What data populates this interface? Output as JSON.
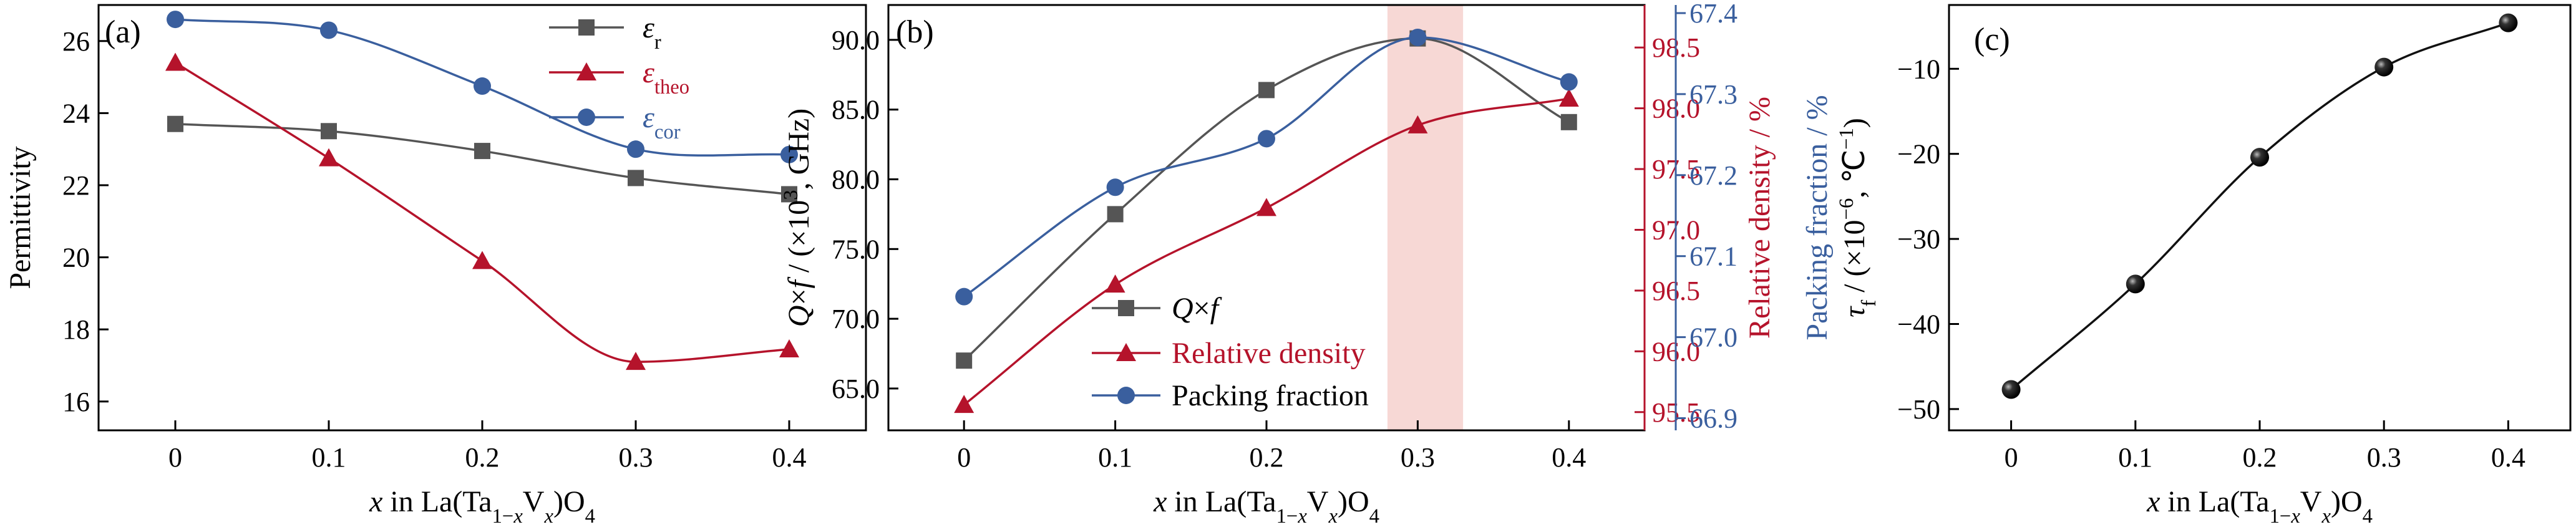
{
  "figure": {
    "panels": [
      {
        "panel_label": "(a)",
        "xlabel": "x in La(Ta1−xVx)O4",
        "ylabel": "Permittivity"
      },
      {
        "panel_label": "(b)",
        "xlabel": "x in La(Ta1−xVx)O4",
        "ylabel_left": "Q×f / (×10³, GHz)",
        "ylabel_right1": "Relative density / %",
        "ylabel_right2": "Packing fraction / %"
      },
      {
        "panel_label": "(c)",
        "xlabel": "x in La(Ta1−xVx)O4",
        "ylabel": "τf / (×10⁻⁶, ℃⁻¹)"
      }
    ]
  },
  "colors": {
    "gray": "#555555",
    "red": "#b5132b",
    "blue": "#3a5f9e",
    "black": "#111111",
    "highlight": "#f4c7c3"
  },
  "chart_data": [
    {
      "type": "line",
      "panel": "(a)",
      "x": [
        0,
        0.1,
        0.2,
        0.3,
        0.4
      ],
      "x_ticks": [
        "0",
        "0.1",
        "0.2",
        "0.3",
        "0.4"
      ],
      "xlim": [
        -0.05,
        0.45
      ],
      "ylim": [
        15.2,
        27.0
      ],
      "y_ticks": [
        "16",
        "18",
        "20",
        "22",
        "24",
        "26"
      ],
      "xlabel": "x in La(Ta1−xVx)O4",
      "ylabel": "Permittivity",
      "legend_position": "top-right",
      "series": [
        {
          "name": "εr",
          "marker": "square",
          "color": "gray",
          "values": [
            23.7,
            23.5,
            22.95,
            22.2,
            21.75
          ]
        },
        {
          "name": "εtheo",
          "marker": "triangle",
          "color": "red",
          "values": [
            25.4,
            22.75,
            19.9,
            17.1,
            17.45
          ]
        },
        {
          "name": "εcor",
          "marker": "circle",
          "color": "blue",
          "values": [
            26.6,
            26.3,
            24.75,
            23.0,
            22.85
          ]
        }
      ]
    },
    {
      "type": "line",
      "panel": "(b)",
      "x": [
        0,
        0.1,
        0.2,
        0.3,
        0.4
      ],
      "x_ticks": [
        "0",
        "0.1",
        "0.2",
        "0.3",
        "0.4"
      ],
      "xlim": [
        -0.05,
        0.45
      ],
      "highlight_x": [
        0.28,
        0.33
      ],
      "legend_position": "bottom-center",
      "axes": {
        "left": {
          "label": "Q×f / (×10³, GHz)",
          "ylim": [
            62,
            92.5
          ],
          "ticks": [
            "65.0",
            "70.0",
            "75.0",
            "80.0",
            "85.0",
            "90.0"
          ]
        },
        "right1": {
          "label": "Relative density / %",
          "ylim": [
            95.35,
            98.85
          ],
          "ticks": [
            "95.5",
            "96.0",
            "96.5",
            "97.0",
            "97.5",
            "98.0",
            "98.5"
          ]
        },
        "right2": {
          "label": "Packing fraction / %",
          "ylim": [
            66.885,
            67.41
          ],
          "ticks": [
            "66.9",
            "67.0",
            "67.1",
            "67.2",
            "67.3",
            "67.4"
          ]
        }
      },
      "series": [
        {
          "name": "Q×f",
          "axis": "left",
          "marker": "square",
          "color": "gray",
          "values": [
            67.0,
            77.5,
            86.4,
            90.1,
            84.1
          ]
        },
        {
          "name": "Relative density",
          "axis": "right1",
          "marker": "triangle",
          "color": "red",
          "values": [
            95.56,
            96.55,
            97.18,
            97.86,
            98.08
          ]
        },
        {
          "name": "Packing fraction",
          "axis": "right2",
          "marker": "circle",
          "color": "blue",
          "values": [
            67.05,
            67.185,
            67.245,
            67.37,
            67.315
          ]
        }
      ]
    },
    {
      "type": "line",
      "panel": "(c)",
      "x": [
        0,
        0.1,
        0.2,
        0.3,
        0.4
      ],
      "x_ticks": [
        "0",
        "0.1",
        "0.2",
        "0.3",
        "0.4"
      ],
      "xlim": [
        -0.05,
        0.45
      ],
      "ylim": [
        -52.5,
        -2.5
      ],
      "y_ticks": [
        "−50",
        "−40",
        "−30",
        "−20",
        "−10"
      ],
      "y_tick_values": [
        -50,
        -40,
        -30,
        -20,
        -10
      ],
      "xlabel": "x in La(Ta1−xVx)O4",
      "ylabel": "τf / (×10⁻⁶, ℃⁻¹)",
      "series": [
        {
          "name": "",
          "marker": "sphere",
          "color": "black",
          "values": [
            -47.7,
            -35.3,
            -20.4,
            -9.8,
            -4.6
          ]
        }
      ]
    }
  ]
}
